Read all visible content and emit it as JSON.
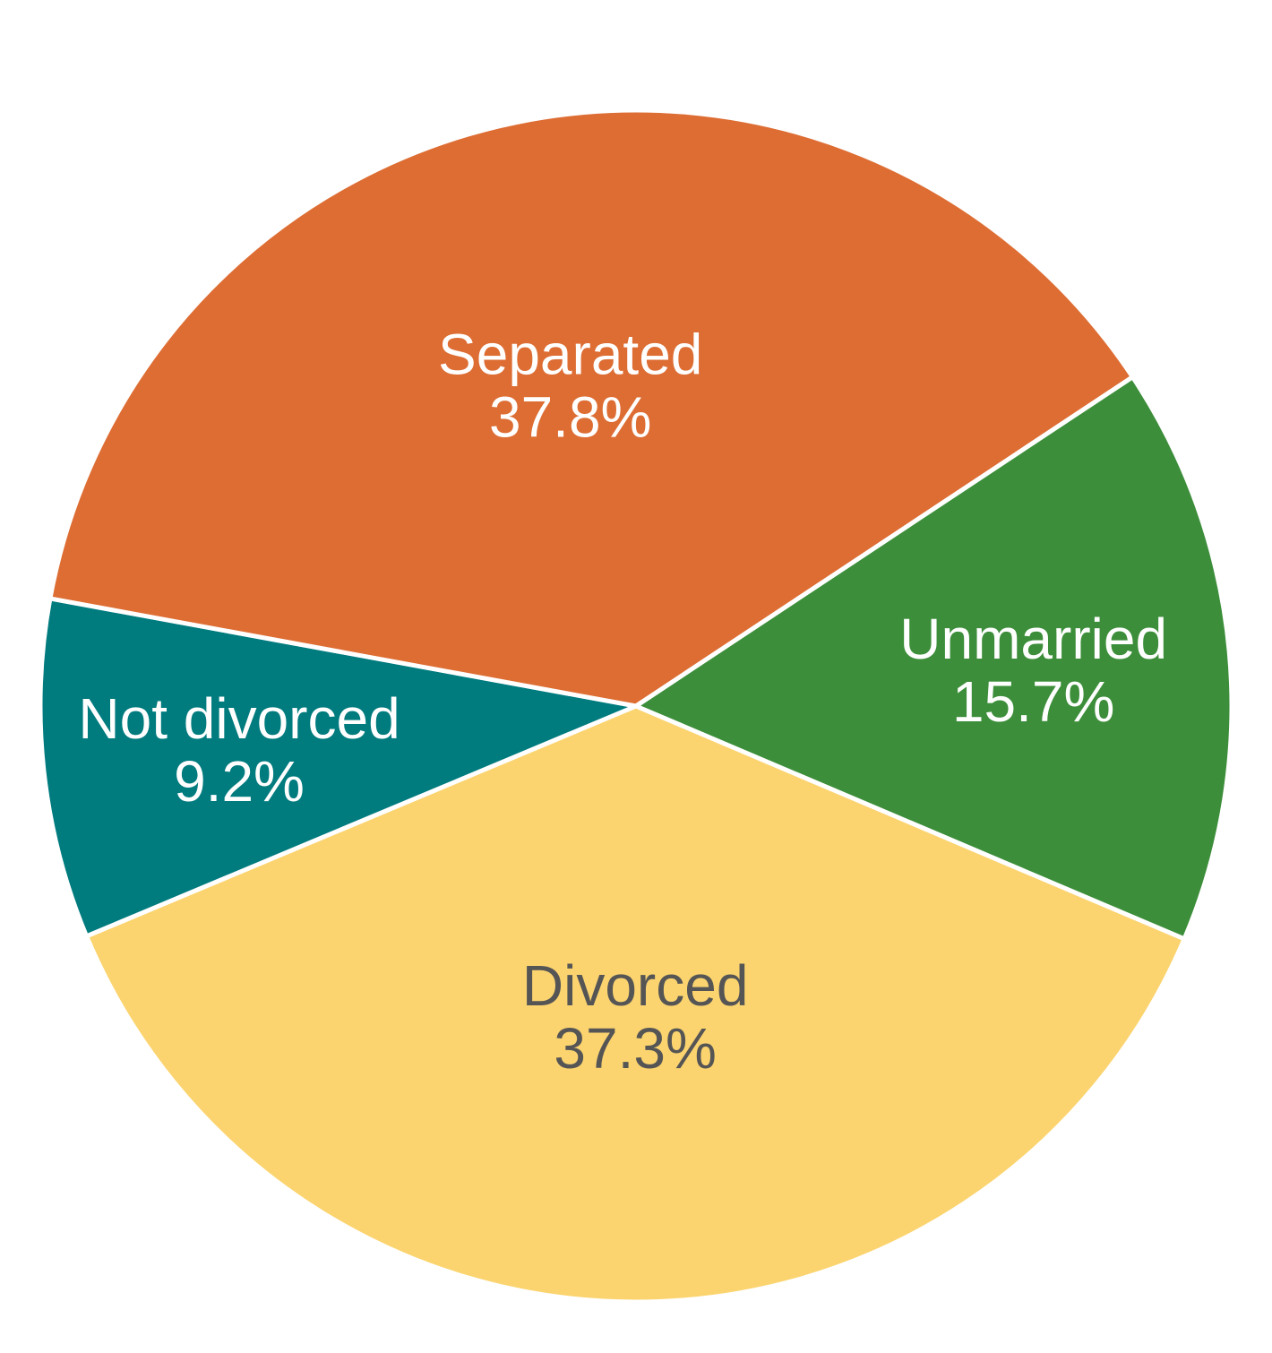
{
  "chart_data": {
    "type": "pie",
    "title": "",
    "slices": [
      {
        "label": "Divorced",
        "value": 37.3,
        "display": "37.3%",
        "color": "#FBD46F",
        "text_color": "#555555"
      },
      {
        "label": "Not divorced",
        "value": 9.2,
        "display": "9.2%",
        "color": "#007B7E",
        "text_color": "#ffffff"
      },
      {
        "label": "Separated",
        "value": 37.8,
        "display": "37.8%",
        "color": "#DD6D33",
        "text_color": "#ffffff"
      },
      {
        "label": "Unmarried",
        "value": 15.7,
        "display": "15.7%",
        "color": "#3C8E3A",
        "text_color": "#ffffff"
      }
    ],
    "legend": "none"
  }
}
